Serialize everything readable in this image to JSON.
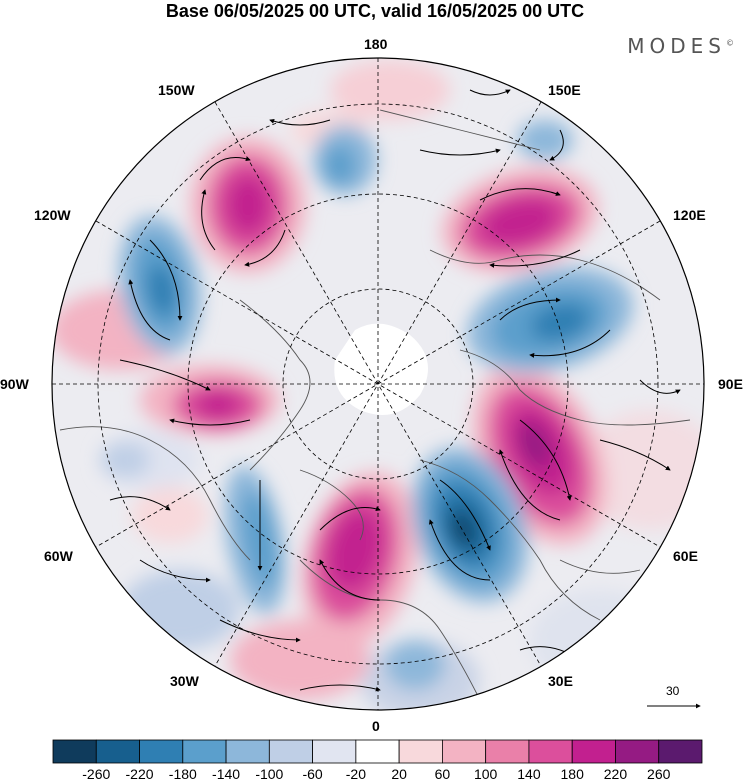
{
  "title": "Base 06/05/2025 00 UTC, valid 16/05/2025 00 UTC",
  "brand": "MODES",
  "brand_mark": "©",
  "longitude_labels": {
    "n180": "180",
    "w150": "150W",
    "e150": "150E",
    "w120": "120W",
    "e120": "120E",
    "w90": "90W",
    "e90": "90E",
    "w60": "60W",
    "e60": "60E",
    "w30": "30W",
    "e30": "30E",
    "s0": "0"
  },
  "reference_vector": "30",
  "colorbar": {
    "labels": [
      "-260",
      "-220",
      "-180",
      "-140",
      "-100",
      "-60",
      "-20",
      "20",
      "60",
      "100",
      "140",
      "180",
      "220",
      "260"
    ],
    "colors": [
      "#0f3b5c",
      "#175f8e",
      "#2f7fb3",
      "#5b9fcc",
      "#8db7da",
      "#bfcfe6",
      "#e1e5f1",
      "#ffffff",
      "#f8d9dc",
      "#f3b3c3",
      "#ea80a9",
      "#dc4f9c",
      "#c2208f",
      "#951b83",
      "#5b1a6e"
    ]
  }
}
